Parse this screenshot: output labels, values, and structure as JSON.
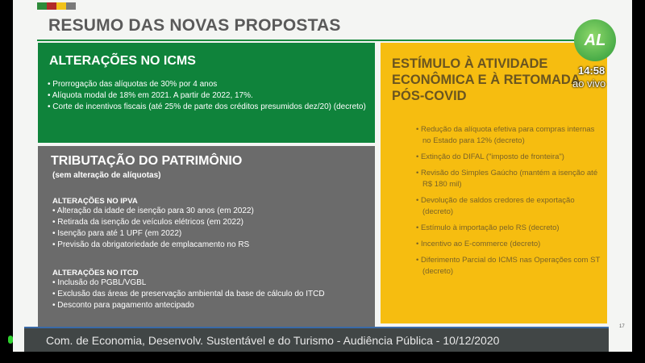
{
  "slide": {
    "title": "RESUMO DAS NOVAS PROPOSTAS",
    "stripe_colors": [
      "#2e8b3a",
      "#b22a2a",
      "#f2c21a",
      "#7a7a7a"
    ],
    "page_number": "17",
    "icms": {
      "heading": "ALTERAÇÕES NO ICMS",
      "items": [
        "Prorrogação das alíquotas de 30% por 4 anos",
        "Alíquota modal de 18% em 2021. A partir de 2022, 17%.",
        "Corte de incentivos fiscais (até 25% de parte dos créditos presumidos dez/20) (decreto)"
      ]
    },
    "patrimonio": {
      "heading": "TRIBUTAÇÃO DO PATRIMÔNIO",
      "subheading": "(sem alteração de alíquotas)",
      "ipva": {
        "heading": "ALTERAÇÕES NO IPVA",
        "items": [
          "Alteração da idade de isenção para 30 anos (em 2022)",
          "Retirada da isenção de veículos elétricos (em 2022)",
          "Isenção para até 1 UPF (em 2022)",
          "Previsão da obrigatoriedade de emplacamento no RS"
        ]
      },
      "itcd": {
        "heading": "ALTERAÇÕES NO ITCD",
        "items": [
          "Inclusão do PGBL/VGBL",
          "Exclusão das áreas de preservação ambiental da base de cálculo do ITCD",
          "Desconto para pagamento antecipado"
        ]
      }
    },
    "estimulo": {
      "heading": "ESTÍMULO À ATIVIDADE ECONÔMICA E À RETOMADA PÓS-COVID",
      "items": [
        "Redução da alíquota efetiva para compras internas no Estado para 12% (decreto)",
        "Extinção do DIFAL (\"imposto de fronteira\")",
        "Revisão do Simples Gaúcho (mantém a isenção até R$ 180 mil)",
        "Devolução de saldos credores de exportação (decreto)",
        "Estímulo à importação pelo RS (decreto)",
        "Incentivo ao E-commerce (decreto)",
        "Diferimento Parcial do ICMS nas Operações com ST (decreto)"
      ]
    }
  },
  "broadcast": {
    "caption": "Com. de Economia, Desenvolv. Sustentável e do Turismo - Audiência Pública - 10/12/2020",
    "time": "14:58",
    "live": "ao vivo",
    "logo_text": "AL"
  }
}
